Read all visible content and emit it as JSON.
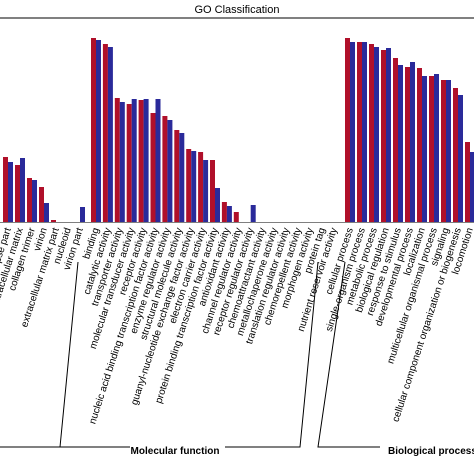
{
  "chart_data": {
    "type": "bar",
    "title": "GO Classification",
    "categories": [
      "synapse part",
      "extracellular matrix",
      "collagen trimer",
      "virion",
      "extracellular matrix part",
      "nucleoid",
      "virion part",
      "binding",
      "catalytic activity",
      "transporter activity",
      "molecular transducer activity",
      "receptor activity",
      "nucleic acid binding transcription factor activity",
      "enzyme regulator activity",
      "structural molecule activity",
      "guanyl-nucleotide exchange factor activity",
      "electron carrier activity",
      "protein binding transcription factor activity",
      "antioxidant activity",
      "channel regulator activity",
      "receptor regulator activity",
      "chemoattractant activity",
      "metallochaperone activity",
      "translation regulator activity",
      "chemorepellent activity",
      "morphogen activity",
      "protein tag",
      "nutrient reservoir activity",
      "cellular process",
      "single-organism process",
      "metabolic process",
      "biological regulation",
      "response to stimulus",
      "developmental process",
      "localization",
      "multicellular organismal process",
      "signaling",
      "cellular component organization or biogenesis",
      "locomotion"
    ],
    "series": [
      {
        "color": "#b0102a",
        "values": [
          32.5,
          28.5,
          22,
          17.5,
          1,
          0,
          0,
          92,
          89,
          62,
          59,
          61,
          54.5,
          53,
          46,
          36.5,
          35,
          31,
          10,
          5,
          0,
          0,
          0,
          0,
          0,
          0,
          0,
          0,
          92,
          90,
          89,
          86,
          82,
          77.5,
          77,
          73,
          71,
          67,
          40
        ]
      },
      {
        "color": "#2a2a9a",
        "values": [
          30,
          32,
          21,
          9.5,
          0,
          0,
          7.5,
          91,
          87.5,
          60,
          61.5,
          61.5,
          61.5,
          51,
          44.5,
          35.5,
          31,
          17,
          8,
          0,
          8.5,
          0,
          0,
          0,
          0,
          0,
          0,
          0,
          90,
          90,
          87.5,
          87,
          78.5,
          80,
          73,
          74,
          71,
          63.5,
          35
        ]
      }
    ],
    "group_labels": [
      "Molecular function",
      "Biological process"
    ],
    "ylim": [
      0,
      102
    ]
  }
}
